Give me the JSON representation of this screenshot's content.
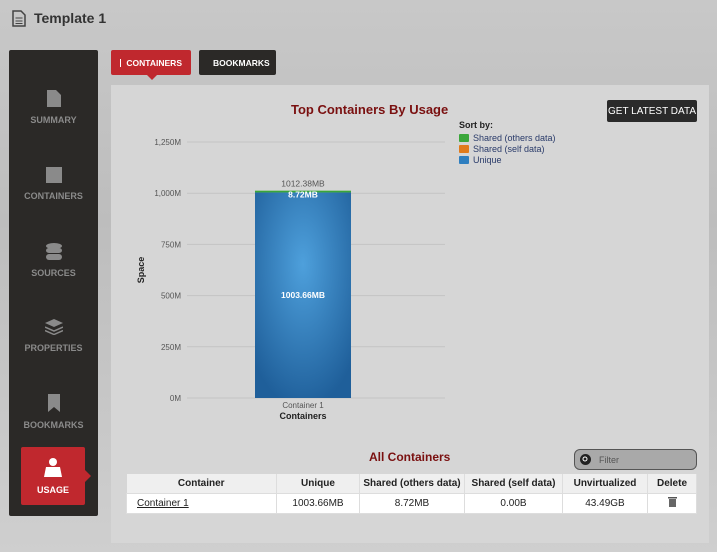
{
  "header": {
    "title": "Template 1"
  },
  "sidebar": {
    "items": [
      {
        "label": "SUMMARY",
        "icon": "document-icon"
      },
      {
        "label": "CONTAINERS",
        "icon": "container-icon"
      },
      {
        "label": "SOURCES",
        "icon": "database-icon"
      },
      {
        "label": "PROPERTIES",
        "icon": "layers-icon"
      },
      {
        "label": "BOOKMARKS",
        "icon": "bookmark-icon"
      },
      {
        "label": "USAGE",
        "icon": "usage-icon",
        "active": true
      }
    ]
  },
  "tabs": [
    {
      "label": "CONTAINERS",
      "active": true
    },
    {
      "label": "BOOKMARKS"
    }
  ],
  "main": {
    "get_latest_label": "GET LATEST DATA",
    "table_title": "All Containers",
    "filter_placeholder": "Filter"
  },
  "chart_data": {
    "type": "bar",
    "stacked": true,
    "title": "Top Containers By Usage",
    "xlabel": "Containers",
    "ylabel": "Space",
    "ylim": [
      0,
      1250
    ],
    "yticks": [
      "0M",
      "250M",
      "500M",
      "750M",
      "1,000M",
      "1,250M"
    ],
    "categories": [
      "Container 1"
    ],
    "legend_title": "Sort by:",
    "legend_placement": "right",
    "series": [
      {
        "name": "Unique",
        "values": [
          1003.66
        ],
        "label": "1003.66MB",
        "color": "#2f7fc0"
      },
      {
        "name": "Shared (self data)",
        "values": [
          0
        ],
        "color": "#e07b1c"
      },
      {
        "name": "Shared (others data)",
        "values": [
          8.72
        ],
        "label": "8.72MB",
        "color": "#3aa63a"
      }
    ],
    "total_label": "1012.38MB",
    "grid": true
  },
  "table": {
    "columns": [
      "Container",
      "Unique",
      "Shared (others data)",
      "Shared (self data)",
      "Unvirtualized",
      "Delete"
    ],
    "rows": [
      [
        "Container 1",
        "1003.66MB",
        "8.72MB",
        "0.00B",
        "43.49GB"
      ]
    ]
  }
}
